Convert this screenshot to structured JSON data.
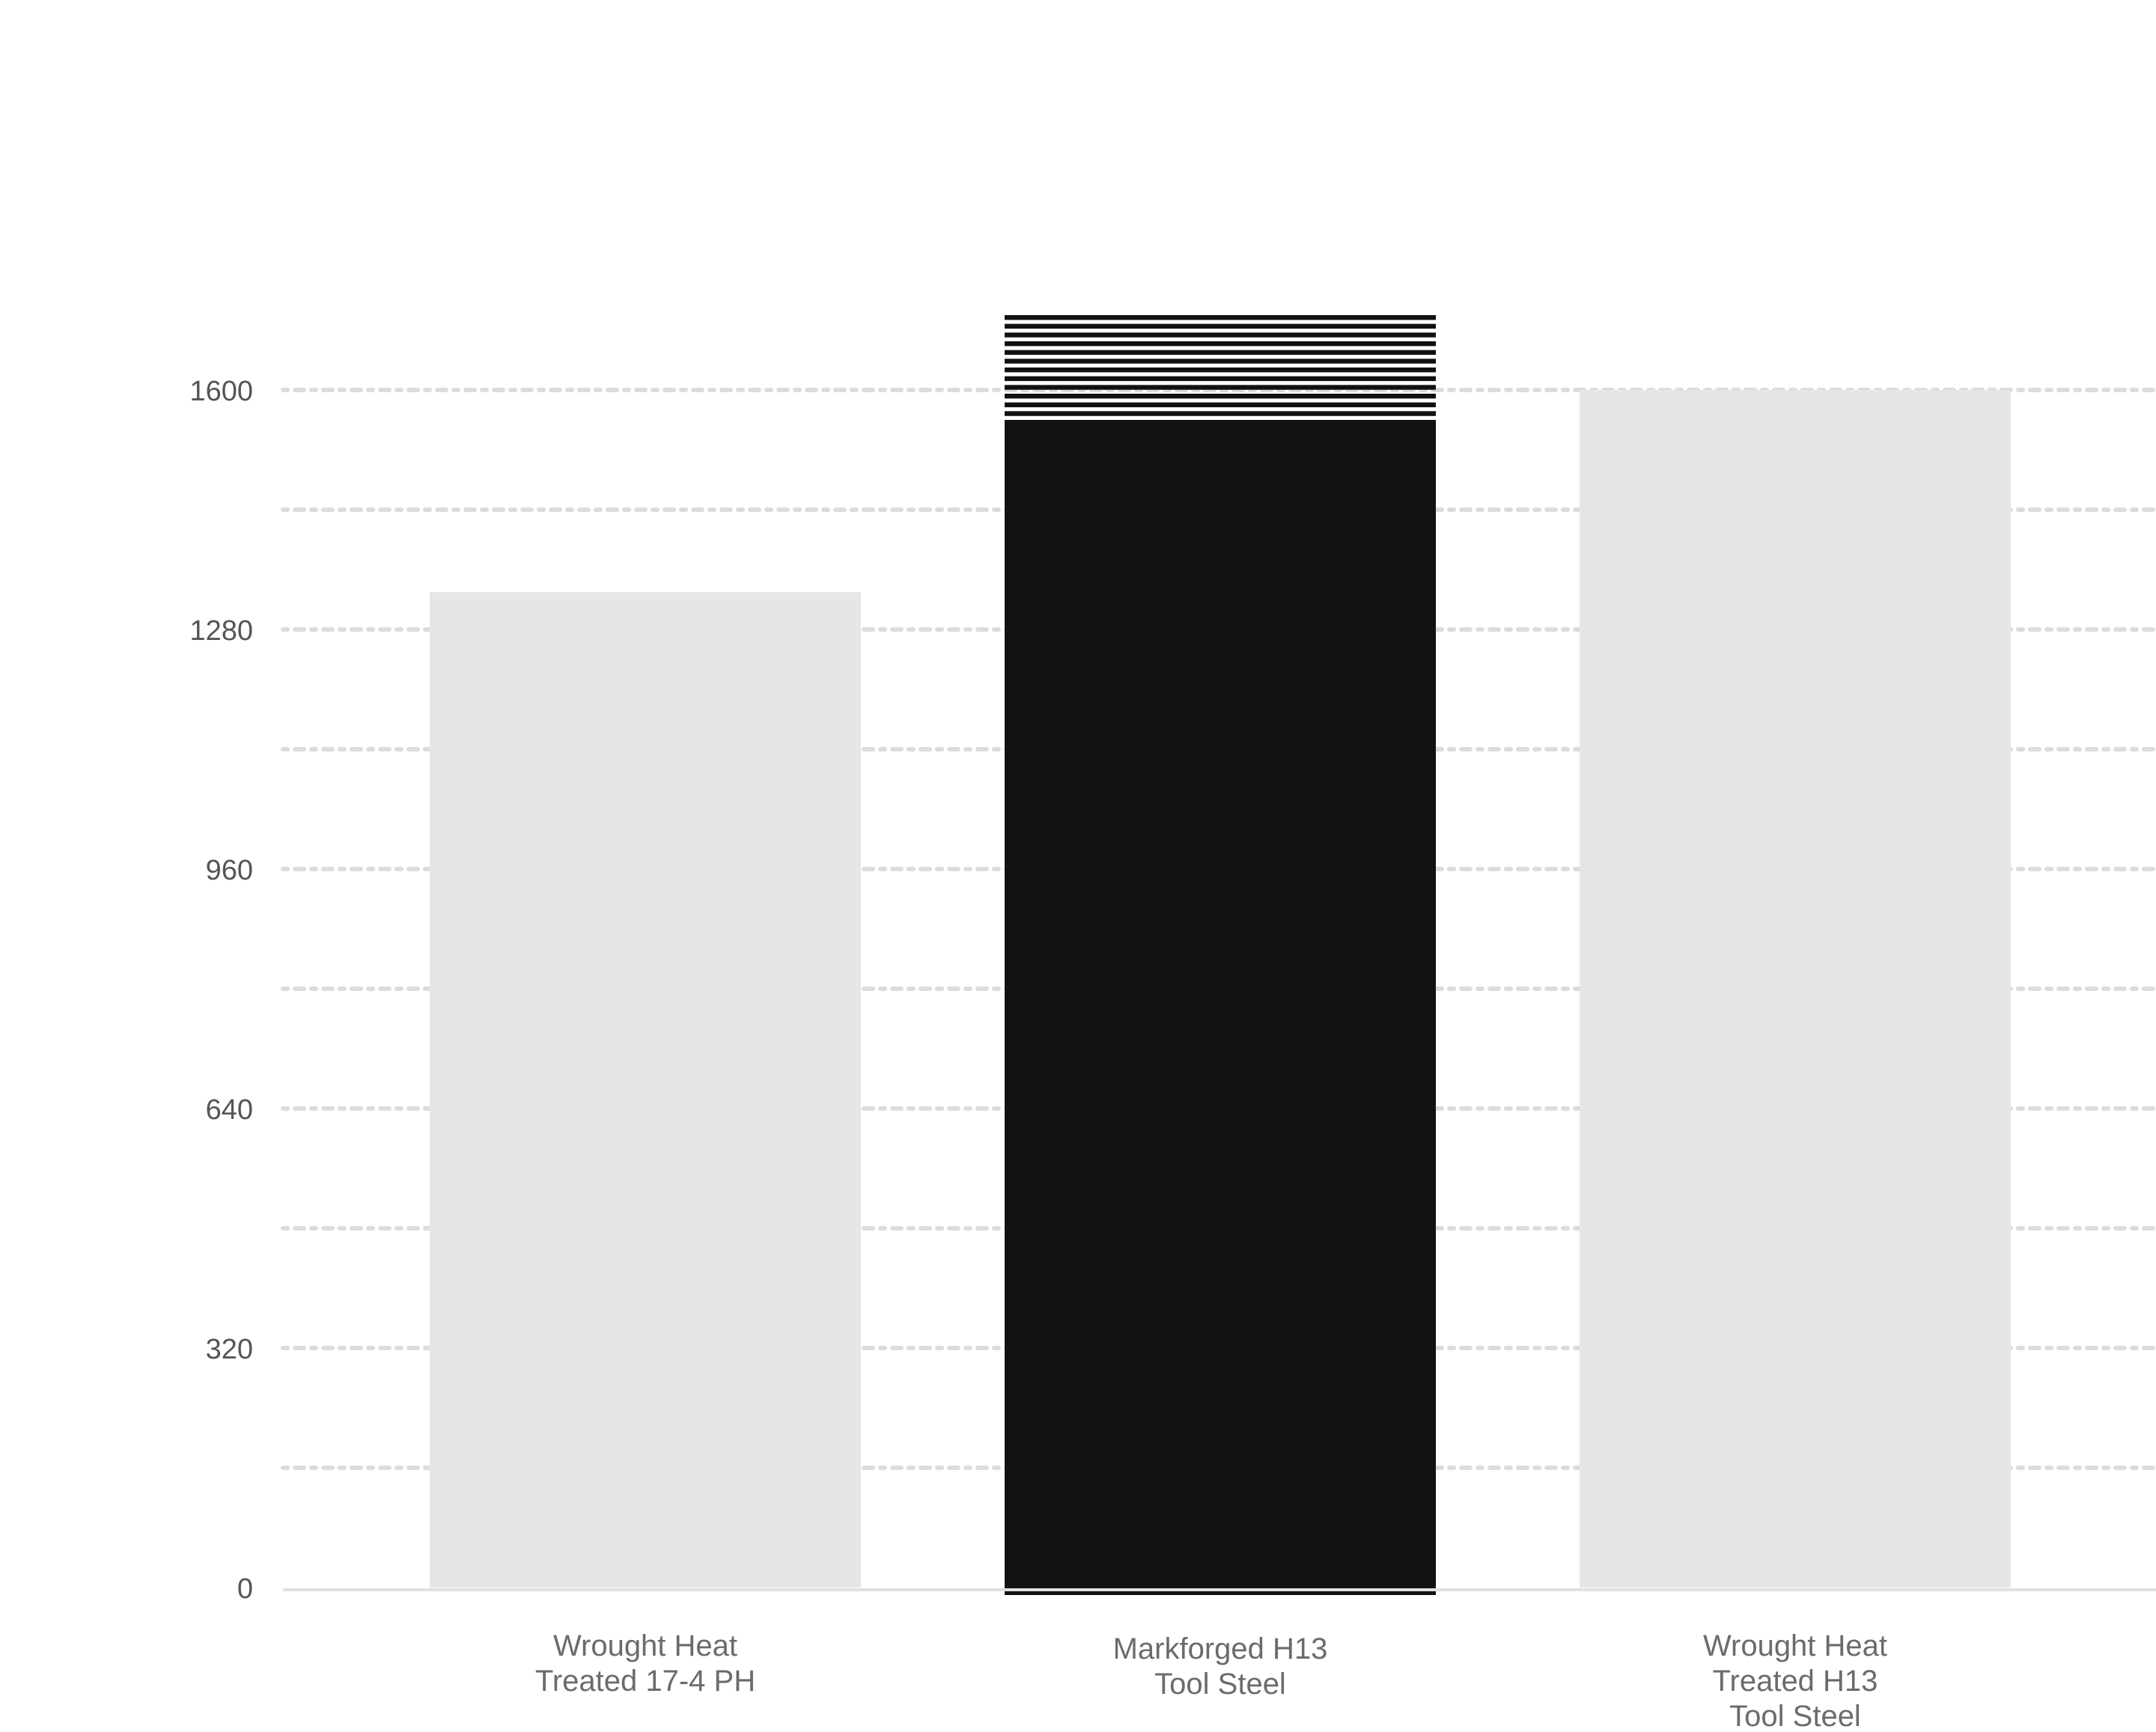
{
  "chart_data": {
    "type": "bar",
    "title": "",
    "xlabel": "",
    "ylabel": "",
    "ylim": [
      0,
      1760
    ],
    "y_ticks": [
      0,
      320,
      640,
      960,
      1280,
      1600
    ],
    "grid": true,
    "grid_style": "dotted",
    "categories": [
      [
        "Wrought Heat",
        "Treated 17-4 PH"
      ],
      [
        "Markforged H13",
        "Tool Steel"
      ],
      [
        "Wrought Heat",
        "Treated H13",
        "Tool Steel"
      ]
    ],
    "values": [
      1330,
      1560,
      1600
    ],
    "range_top": [
      null,
      1700,
      null
    ],
    "colors": {
      "highlight": "#111111",
      "reference": "#e6e6e6",
      "grid": "#dcdcdc",
      "axis": "#e0e0e0",
      "tick_text": "#555555",
      "category_text": "#6b6b6b"
    },
    "highlight_index": 1
  }
}
